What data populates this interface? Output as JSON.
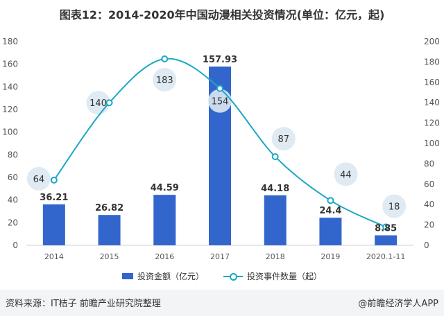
{
  "title": "图表12：2014-2020年中国动漫相关投资情况(单位：亿元，起)",
  "legend": {
    "bar_label": "投资金额（亿元）",
    "line_label": "投资事件数量（起）"
  },
  "source": "资料来源：IT桔子 前瞻产业研究院整理",
  "brand": "@前瞻经济学人APP",
  "colors": {
    "bar": "#3366cc",
    "line": "#1aa7c6",
    "bubble": "#dbe8f1",
    "axis_text": "#555555"
  },
  "chart_data": {
    "type": "bar",
    "categories": [
      "2014",
      "2015",
      "2016",
      "2017",
      "2018",
      "2019",
      "2020.1-11"
    ],
    "series": [
      {
        "name": "投资金额（亿元）",
        "type": "bar",
        "axis": "left",
        "values": [
          36.21,
          26.82,
          44.59,
          157.93,
          44.18,
          24.4,
          8.85
        ],
        "labels": [
          "36.21",
          "26.82",
          "44.59",
          "157.93",
          "44.18",
          "24.4",
          "8.85"
        ]
      },
      {
        "name": "投资事件数量（起）",
        "type": "line",
        "axis": "right",
        "smooth": true,
        "values": [
          64,
          140,
          183,
          154,
          87,
          44,
          18
        ],
        "labels": [
          "64",
          "140",
          "183",
          "154",
          "87",
          "44",
          "18"
        ]
      }
    ],
    "y_left": {
      "min": 0,
      "max": 180,
      "ticks": [
        "0",
        "20",
        "40",
        "60",
        "80",
        "100",
        "120",
        "140",
        "160",
        "180"
      ]
    },
    "y_right": {
      "min": 0,
      "max": 200,
      "ticks": [
        "0",
        "20",
        "40",
        "60",
        "80",
        "100",
        "120",
        "140",
        "160",
        "180",
        "200"
      ]
    },
    "grid": false,
    "legend_position": "bottom"
  }
}
